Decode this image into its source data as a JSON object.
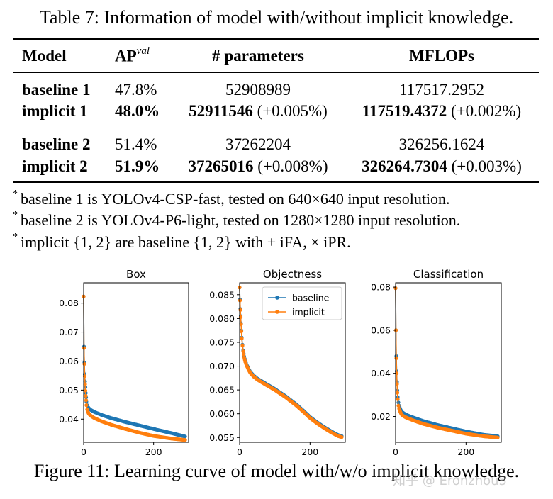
{
  "table": {
    "caption": "Table 7: Information of model with/without implicit knowledge.",
    "headers": {
      "model": "Model",
      "ap": "AP",
      "ap_sup": "val",
      "params": "# parameters",
      "mflops": "MFLOPs"
    },
    "rows": [
      {
        "model": "baseline 1",
        "ap": "47.8%",
        "params": "52908989",
        "params_delta": "",
        "mflops": "117517.2952",
        "mflops_delta": ""
      },
      {
        "model": "implicit 1",
        "ap": "48.0%",
        "params": "52911546",
        "params_delta": " (+0.005%)",
        "mflops": "117519.4372",
        "mflops_delta": " (+0.002%)"
      },
      {
        "model": "baseline 2",
        "ap": "51.4%",
        "params": "37262204",
        "params_delta": "",
        "mflops": "326256.1624",
        "mflops_delta": ""
      },
      {
        "model": "implicit 2",
        "ap": "51.9%",
        "params": "37265016",
        "params_delta": " (+0.008%)",
        "mflops": "326264.7304",
        "mflops_delta": " (+0.003%)"
      }
    ],
    "notes": [
      {
        "mark": "*",
        "text": "baseline 1 is YOLOv4-CSP-fast, tested on 640×640 input resolution."
      },
      {
        "mark": "*",
        "text": "baseline 2 is YOLOv4-P6-light, tested on 1280×1280 input resolution."
      },
      {
        "mark": "*",
        "text": "implicit {1, 2} are baseline {1, 2} with + iFA, × iPR."
      }
    ]
  },
  "colors": {
    "baseline": "#1f77b4",
    "implicit": "#ff7f0e"
  },
  "chart_data": [
    {
      "type": "line",
      "title": "Box",
      "xlim": [
        0,
        300
      ],
      "ylim": [
        0.032,
        0.087
      ],
      "xticks": [
        0,
        200
      ],
      "yticks": [
        0.04,
        0.05,
        0.06,
        0.07,
        0.08
      ],
      "ytick_labels": [
        "0.04",
        "0.05",
        "0.06",
        "0.07",
        "0.08"
      ],
      "series": [
        {
          "name": "baseline",
          "x": [
            0,
            1,
            2,
            3,
            4,
            5,
            6,
            7,
            8,
            10,
            12,
            15,
            20,
            30,
            50,
            80,
            120,
            160,
            200,
            250,
            290
          ],
          "y": [
            0.0823,
            0.065,
            0.0595,
            0.0555,
            0.053,
            0.051,
            0.049,
            0.0475,
            0.046,
            0.0448,
            0.0442,
            0.0437,
            0.0432,
            0.0425,
            0.0415,
            0.0403,
            0.039,
            0.0378,
            0.0366,
            0.0352,
            0.034
          ]
        },
        {
          "name": "implicit",
          "x": [
            0,
            1,
            2,
            3,
            4,
            5,
            6,
            7,
            8,
            10,
            12,
            15,
            20,
            30,
            50,
            80,
            120,
            160,
            200,
            250,
            290
          ],
          "y": [
            0.0823,
            0.0645,
            0.059,
            0.0548,
            0.052,
            0.0498,
            0.048,
            0.0465,
            0.0448,
            0.0433,
            0.0425,
            0.0418,
            0.0412,
            0.0404,
            0.0393,
            0.038,
            0.0366,
            0.0353,
            0.0342,
            0.0333,
            0.0328
          ]
        }
      ]
    },
    {
      "type": "line",
      "title": "Objectness",
      "xlim": [
        0,
        300
      ],
      "ylim": [
        0.054,
        0.0875
      ],
      "xticks": [
        0,
        200
      ],
      "yticks": [
        0.055,
        0.06,
        0.065,
        0.07,
        0.075,
        0.08,
        0.085
      ],
      "ytick_labels": [
        "0.055",
        "0.060",
        "0.065",
        "0.070",
        "0.075",
        "0.080",
        "0.085"
      ],
      "legend": {
        "position": "upper-right",
        "entries": [
          "baseline",
          "implicit"
        ]
      },
      "series": [
        {
          "name": "baseline",
          "x": [
            0,
            1,
            2,
            3,
            4,
            5,
            6,
            8,
            10,
            13,
            16,
            20,
            25,
            30,
            40,
            50,
            70,
            100,
            130,
            160,
            180,
            200,
            220,
            240,
            260,
            280,
            290
          ],
          "y": [
            0.0865,
            0.084,
            0.082,
            0.0805,
            0.079,
            0.0775,
            0.076,
            0.0745,
            0.0733,
            0.072,
            0.0711,
            0.0703,
            0.0695,
            0.0688,
            0.068,
            0.0674,
            0.0665,
            0.0652,
            0.0637,
            0.062,
            0.0607,
            0.0593,
            0.0582,
            0.0572,
            0.0563,
            0.0555,
            0.0553
          ]
        },
        {
          "name": "implicit",
          "x": [
            0,
            1,
            2,
            3,
            4,
            5,
            6,
            8,
            10,
            13,
            16,
            20,
            25,
            30,
            40,
            50,
            70,
            100,
            130,
            160,
            180,
            200,
            220,
            240,
            260,
            280,
            290
          ],
          "y": [
            0.0865,
            0.0838,
            0.0818,
            0.0803,
            0.0788,
            0.0773,
            0.0758,
            0.0743,
            0.0731,
            0.0718,
            0.0709,
            0.0701,
            0.0693,
            0.0686,
            0.0678,
            0.0672,
            0.0663,
            0.065,
            0.0635,
            0.0618,
            0.0605,
            0.0591,
            0.058,
            0.057,
            0.0561,
            0.0553,
            0.0551
          ]
        }
      ]
    },
    {
      "type": "line",
      "title": "Classification",
      "xlim": [
        0,
        300
      ],
      "ylim": [
        0.008,
        0.082
      ],
      "xticks": [
        0,
        200
      ],
      "yticks": [
        0.02,
        0.04,
        0.06,
        0.08
      ],
      "ytick_labels": [
        "0.02",
        "0.04",
        "0.06",
        "0.08"
      ],
      "series": [
        {
          "name": "baseline",
          "x": [
            0,
            1,
            2,
            3,
            4,
            5,
            6,
            8,
            10,
            13,
            16,
            20,
            30,
            50,
            80,
            120,
            160,
            200,
            250,
            290
          ],
          "y": [
            0.0795,
            0.06,
            0.048,
            0.041,
            0.036,
            0.032,
            0.029,
            0.0265,
            0.025,
            0.0235,
            0.0225,
            0.0218,
            0.0208,
            0.0195,
            0.0178,
            0.016,
            0.0145,
            0.013,
            0.0115,
            0.0108
          ]
        },
        {
          "name": "implicit",
          "x": [
            0,
            1,
            2,
            3,
            4,
            5,
            6,
            8,
            10,
            13,
            16,
            20,
            30,
            50,
            80,
            120,
            160,
            200,
            250,
            290
          ],
          "y": [
            0.0795,
            0.06,
            0.047,
            0.04,
            0.035,
            0.031,
            0.028,
            0.025,
            0.0236,
            0.0222,
            0.0212,
            0.0204,
            0.0195,
            0.0182,
            0.0165,
            0.0148,
            0.0134,
            0.012,
            0.0108,
            0.0102
          ]
        }
      ]
    }
  ],
  "figure": {
    "caption": "Figure 11: Learning curve of model with/w/o implicit knowledge."
  },
  "watermark": "知乎 @ Eronzhou5"
}
